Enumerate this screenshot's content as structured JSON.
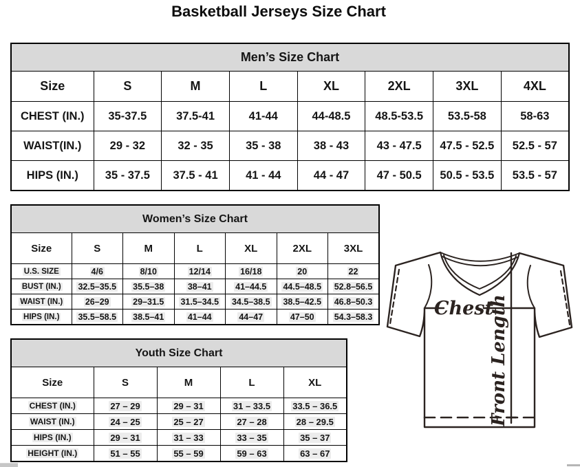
{
  "page_title": "Basketball Jerseys Size Chart",
  "tables": {
    "men": {
      "title": "Men’s Size Chart",
      "header": [
        "Size",
        "S",
        "M",
        "L",
        "XL",
        "2XL",
        "3XL",
        "4XL"
      ],
      "rows": [
        {
          "label": "CHEST (IN.)",
          "values": [
            "35-37.5",
            "37.5-41",
            "41-44",
            "44-48.5",
            "48.5-53.5",
            "53.5-58",
            "58-63"
          ]
        },
        {
          "label": "WAIST(IN.)",
          "values": [
            "29 - 32",
            "32 - 35",
            "35 - 38",
            "38 - 43",
            "43 - 47.5",
            "47.5 - 52.5",
            "52.5 - 57"
          ]
        },
        {
          "label": "HIPS (IN.)",
          "values": [
            "35 - 37.5",
            "37.5 - 41",
            "41 - 44",
            "44 - 47",
            "47 - 50.5",
            "50.5 - 53.5",
            "53.5 - 57"
          ]
        }
      ]
    },
    "women": {
      "title": "Women’s Size Chart",
      "header": [
        "Size",
        "S",
        "M",
        "L",
        "XL",
        "2XL",
        "3XL"
      ],
      "rows": [
        {
          "label": "U.S. SIZE",
          "values": [
            "4/6",
            "8/10",
            "12/14",
            "16/18",
            "20",
            "22"
          ]
        },
        {
          "label": "BUST (IN.)",
          "values": [
            "32.5–35.5",
            "35.5–38",
            "38–41",
            "41–44.5",
            "44.5–48.5",
            "52.8–56.5"
          ]
        },
        {
          "label": "WAIST (IN.)",
          "values": [
            "26–29",
            "29–31.5",
            "31.5–34.5",
            "34.5–38.5",
            "38.5–42.5",
            "46.8–50.3"
          ]
        },
        {
          "label": "HIPS (IN.)",
          "values": [
            "35.5–58.5",
            "38.5–41",
            "41–44",
            "44–47",
            "47–50",
            "54.3–58.3"
          ]
        }
      ]
    },
    "youth": {
      "title": "Youth Size Chart",
      "header": [
        "Size",
        "S",
        "M",
        "L",
        "XL"
      ],
      "rows": [
        {
          "label": "CHEST (IN.)",
          "values": [
            "27 – 29",
            "29 – 31",
            "31 – 33.5",
            "33.5 – 36.5"
          ]
        },
        {
          "label": "WAIST (IN.)",
          "values": [
            "24 – 25",
            "25 – 27",
            "27 – 28",
            "28 – 29.5"
          ]
        },
        {
          "label": "HIPS (IN.)",
          "values": [
            "29 – 31",
            "31 – 33",
            "33 – 35",
            "35 – 37"
          ]
        },
        {
          "label": "HEIGHT (IN.)",
          "values": [
            "51 – 55",
            "55 – 59",
            "59 – 63",
            "63 – 67"
          ]
        }
      ]
    }
  },
  "diagram": {
    "chest_label": "Chest",
    "front_length_label": "Front Length"
  },
  "colors": {
    "table_band_fill": "#d9d9d9",
    "table_border": "#000000",
    "diagram_line": "#2b2320",
    "value_highlight": "#ececec"
  }
}
